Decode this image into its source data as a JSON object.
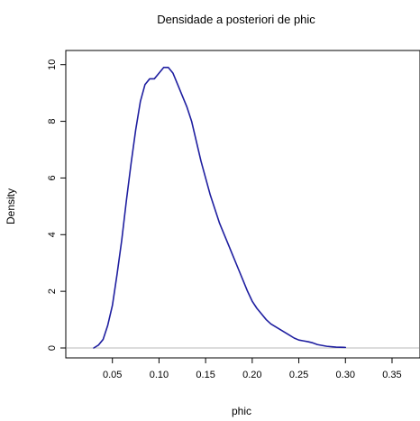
{
  "chart_data": {
    "type": "line",
    "title": "Densidade a posteriori de phic",
    "xlabel": "phic",
    "ylabel": "Density",
    "xlim": [
      0.0,
      0.38
    ],
    "ylim": [
      -0.35,
      10.5
    ],
    "x_ticks": [
      0.05,
      0.1,
      0.15,
      0.2,
      0.25,
      0.3,
      0.35
    ],
    "x_tick_labels": [
      "0.05",
      "0.10",
      "0.15",
      "0.20",
      "0.25",
      "0.30",
      "0.35"
    ],
    "y_ticks": [
      0,
      2,
      4,
      6,
      8,
      10
    ],
    "y_tick_labels": [
      "0",
      "2",
      "4",
      "6",
      "8",
      "10"
    ],
    "grid": false,
    "reference_line": {
      "y": 0,
      "color": "#b8b8b8"
    },
    "series": [
      {
        "color": "#1f1fa0",
        "x": [
          0.03,
          0.035,
          0.04,
          0.045,
          0.05,
          0.055,
          0.06,
          0.065,
          0.07,
          0.075,
          0.08,
          0.085,
          0.09,
          0.095,
          0.1,
          0.105,
          0.11,
          0.115,
          0.12,
          0.125,
          0.13,
          0.135,
          0.14,
          0.145,
          0.15,
          0.155,
          0.16,
          0.165,
          0.17,
          0.175,
          0.18,
          0.185,
          0.19,
          0.195,
          0.2,
          0.205,
          0.21,
          0.215,
          0.22,
          0.225,
          0.23,
          0.235,
          0.24,
          0.245,
          0.25,
          0.255,
          0.26,
          0.265,
          0.27,
          0.28,
          0.29,
          0.3
        ],
        "y": [
          0.0,
          0.1,
          0.3,
          0.8,
          1.5,
          2.6,
          3.8,
          5.2,
          6.5,
          7.7,
          8.7,
          9.3,
          9.5,
          9.5,
          9.7,
          9.9,
          9.9,
          9.7,
          9.3,
          8.9,
          8.5,
          8.0,
          7.3,
          6.6,
          6.0,
          5.4,
          4.9,
          4.4,
          4.0,
          3.6,
          3.2,
          2.8,
          2.4,
          2.0,
          1.65,
          1.4,
          1.2,
          1.0,
          0.85,
          0.75,
          0.65,
          0.55,
          0.45,
          0.35,
          0.28,
          0.25,
          0.22,
          0.18,
          0.12,
          0.06,
          0.03,
          0.02
        ]
      }
    ]
  }
}
